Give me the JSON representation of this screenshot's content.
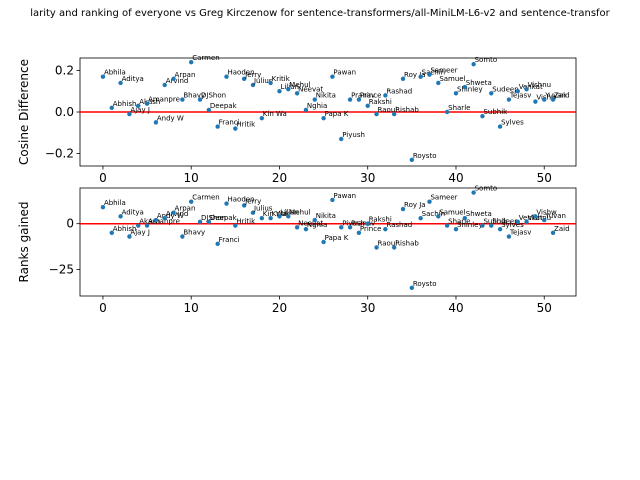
{
  "chart_data": [
    {
      "type": "scatter",
      "title": "larity and ranking of everyone vs Greg Kirczenow for sentence-transformers/all-MiniLM-L6-v2 and sentence-transfor",
      "xlabel": "",
      "ylabel": "Cosine Difference",
      "xlim": [
        -2.6,
        53.6
      ],
      "ylim": [
        -0.26,
        0.26
      ],
      "xticks": [
        0,
        10,
        20,
        30,
        40,
        50
      ],
      "yticks": [
        -0.2,
        0.0,
        0.2
      ],
      "ytick_labels": [
        "−0.2",
        "0.0",
        "0.2"
      ],
      "reference_line": {
        "y": 0,
        "color": "#ff0000"
      },
      "point_color": "#1f77b4",
      "points": [
        {
          "x": 0,
          "y": 0.17,
          "label": "Abhila"
        },
        {
          "x": 1,
          "y": 0.02,
          "label": "Abhish"
        },
        {
          "x": 2,
          "y": 0.14,
          "label": "Aditya"
        },
        {
          "x": 3,
          "y": -0.01,
          "label": "Ajay J"
        },
        {
          "x": 4,
          "y": 0.03,
          "label": "Akash"
        },
        {
          "x": 5,
          "y": 0.04,
          "label": "Amanpre"
        },
        {
          "x": 6,
          "y": -0.05,
          "label": "Andy W"
        },
        {
          "x": 7,
          "y": 0.13,
          "label": "Arvind"
        },
        {
          "x": 8,
          "y": 0.16,
          "label": "Arpan"
        },
        {
          "x": 9,
          "y": 0.06,
          "label": "Bhavy"
        },
        {
          "x": 10,
          "y": 0.24,
          "label": "Carmen"
        },
        {
          "x": 11,
          "y": 0.06,
          "label": "DJShon"
        },
        {
          "x": 12,
          "y": 0.01,
          "label": "Deepak"
        },
        {
          "x": 13,
          "y": -0.07,
          "label": "Franci"
        },
        {
          "x": 14,
          "y": 0.17,
          "label": "Haoden"
        },
        {
          "x": 15,
          "y": -0.08,
          "label": "Hritik"
        },
        {
          "x": 16,
          "y": 0.16,
          "label": "Jerry"
        },
        {
          "x": 17,
          "y": 0.13,
          "label": "Julius"
        },
        {
          "x": 18,
          "y": -0.03,
          "label": "Kin Wa"
        },
        {
          "x": 19,
          "y": 0.14,
          "label": "Kritik"
        },
        {
          "x": 20,
          "y": 0.1,
          "label": "Lilian"
        },
        {
          "x": 21,
          "y": 0.11,
          "label": "Mehul"
        },
        {
          "x": 22,
          "y": 0.09,
          "label": "Neevat"
        },
        {
          "x": 23,
          "y": 0.01,
          "label": "Nghia"
        },
        {
          "x": 24,
          "y": 0.06,
          "label": "Nikita"
        },
        {
          "x": 25,
          "y": -0.03,
          "label": "Papa K"
        },
        {
          "x": 26,
          "y": 0.17,
          "label": "Pawan"
        },
        {
          "x": 27,
          "y": -0.13,
          "label": "Piyush"
        },
        {
          "x": 28,
          "y": 0.06,
          "label": "Pranav"
        },
        {
          "x": 29,
          "y": 0.06,
          "label": "Prince"
        },
        {
          "x": 30,
          "y": 0.03,
          "label": "Rakshi"
        },
        {
          "x": 31,
          "y": -0.01,
          "label": "Raoul"
        },
        {
          "x": 32,
          "y": 0.08,
          "label": "Rashad"
        },
        {
          "x": 33,
          "y": -0.01,
          "label": "Rishab"
        },
        {
          "x": 34,
          "y": 0.16,
          "label": "Roy Ja"
        },
        {
          "x": 35,
          "y": -0.23,
          "label": "Roysto"
        },
        {
          "x": 36,
          "y": 0.17,
          "label": "Sachin"
        },
        {
          "x": 37,
          "y": 0.18,
          "label": "Sameer"
        },
        {
          "x": 38,
          "y": 0.14,
          "label": "Samuel"
        },
        {
          "x": 39,
          "y": -0.0,
          "label": "Sharle"
        },
        {
          "x": 40,
          "y": 0.09,
          "label": "Shinley"
        },
        {
          "x": 41,
          "y": 0.12,
          "label": "Shweta"
        },
        {
          "x": 42,
          "y": 0.23,
          "label": "Somto"
        },
        {
          "x": 43,
          "y": -0.02,
          "label": "Subhik"
        },
        {
          "x": 44,
          "y": 0.09,
          "label": "Sudeep"
        },
        {
          "x": 45,
          "y": -0.07,
          "label": "Sylves"
        },
        {
          "x": 46,
          "y": 0.06,
          "label": "Tejasv"
        },
        {
          "x": 47,
          "y": 0.1,
          "label": "Venkat"
        },
        {
          "x": 48,
          "y": 0.11,
          "label": "Vishnu"
        },
        {
          "x": 49,
          "y": 0.05,
          "label": "Vishw"
        },
        {
          "x": 50,
          "y": 0.06,
          "label": "Yuvan"
        },
        {
          "x": 51,
          "y": 0.06,
          "label": "Zaid"
        }
      ]
    },
    {
      "type": "scatter",
      "xlabel": "",
      "ylabel": "Ranks gained",
      "xlim": [
        -2.6,
        53.6
      ],
      "ylim": [
        -39.5,
        19.5
      ],
      "xticks": [
        0,
        10,
        20,
        30,
        40,
        50
      ],
      "yticks": [
        -25,
        0
      ],
      "ytick_labels": [
        "−25",
        "0"
      ],
      "reference_line": {
        "y": 0,
        "color": "#ff0000"
      },
      "point_color": "#1f77b4",
      "points": [
        {
          "x": 0,
          "y": 9,
          "label": "Abhila"
        },
        {
          "x": 1,
          "y": -5,
          "label": "Abhish"
        },
        {
          "x": 2,
          "y": 4,
          "label": "Aditya"
        },
        {
          "x": 3,
          "y": -7,
          "label": "Ajay J"
        },
        {
          "x": 4,
          "y": -1,
          "label": "Akash"
        },
        {
          "x": 5,
          "y": -1,
          "label": "Amanpre"
        },
        {
          "x": 6,
          "y": 2,
          "label": "Andy W"
        },
        {
          "x": 7,
          "y": 3,
          "label": "Arvind"
        },
        {
          "x": 8,
          "y": 6,
          "label": "Arpan"
        },
        {
          "x": 9,
          "y": -7,
          "label": "Bhavy"
        },
        {
          "x": 10,
          "y": 12,
          "label": "Carmen"
        },
        {
          "x": 11,
          "y": 1,
          "label": "DJShon"
        },
        {
          "x": 12,
          "y": 1,
          "label": "Deepak"
        },
        {
          "x": 13,
          "y": -11,
          "label": "Franci"
        },
        {
          "x": 14,
          "y": 11,
          "label": "Haoden"
        },
        {
          "x": 15,
          "y": -1,
          "label": "Hritik"
        },
        {
          "x": 16,
          "y": 10,
          "label": "Jerry"
        },
        {
          "x": 17,
          "y": 6,
          "label": "Julius"
        },
        {
          "x": 18,
          "y": 3,
          "label": "Kin Wa"
        },
        {
          "x": 19,
          "y": 3,
          "label": "Kritik"
        },
        {
          "x": 20,
          "y": 4,
          "label": "Lilian"
        },
        {
          "x": 21,
          "y": 4,
          "label": "Mehul"
        },
        {
          "x": 22,
          "y": -2,
          "label": "Neevat"
        },
        {
          "x": 23,
          "y": -3,
          "label": "Nghia"
        },
        {
          "x": 24,
          "y": 2,
          "label": "Nikita"
        },
        {
          "x": 25,
          "y": -10,
          "label": "Papa K"
        },
        {
          "x": 26,
          "y": 13,
          "label": "Pawan"
        },
        {
          "x": 27,
          "y": -2,
          "label": "Piyush"
        },
        {
          "x": 28,
          "y": -2,
          "label": "Pranav"
        },
        {
          "x": 29,
          "y": -5,
          "label": "Prince"
        },
        {
          "x": 30,
          "y": 0,
          "label": "Rakshi"
        },
        {
          "x": 31,
          "y": -13,
          "label": "Raoul"
        },
        {
          "x": 32,
          "y": -3,
          "label": "Rashad"
        },
        {
          "x": 33,
          "y": -13,
          "label": "Rishab"
        },
        {
          "x": 34,
          "y": 8,
          "label": "Roy Ja"
        },
        {
          "x": 35,
          "y": -35,
          "label": "Roysto"
        },
        {
          "x": 36,
          "y": 3,
          "label": "Sachin"
        },
        {
          "x": 37,
          "y": 12,
          "label": "Sameer"
        },
        {
          "x": 38,
          "y": 4,
          "label": "Samuel"
        },
        {
          "x": 39,
          "y": -1,
          "label": "Sharle"
        },
        {
          "x": 40,
          "y": -3,
          "label": "Shinley"
        },
        {
          "x": 41,
          "y": 3,
          "label": "Shweta"
        },
        {
          "x": 42,
          "y": 17,
          "label": "Somto"
        },
        {
          "x": 43,
          "y": -1,
          "label": "Subhik"
        },
        {
          "x": 44,
          "y": -1,
          "label": "Sudeep"
        },
        {
          "x": 45,
          "y": -3,
          "label": "Sylves"
        },
        {
          "x": 46,
          "y": -7,
          "label": "Tejasv"
        },
        {
          "x": 47,
          "y": 1,
          "label": "Venkat"
        },
        {
          "x": 48,
          "y": 1,
          "label": "Vishnu"
        },
        {
          "x": 49,
          "y": 4,
          "label": "Vishw"
        },
        {
          "x": 50,
          "y": 2,
          "label": "Yuvan"
        },
        {
          "x": 51,
          "y": -5,
          "label": "Zaid"
        }
      ]
    }
  ]
}
